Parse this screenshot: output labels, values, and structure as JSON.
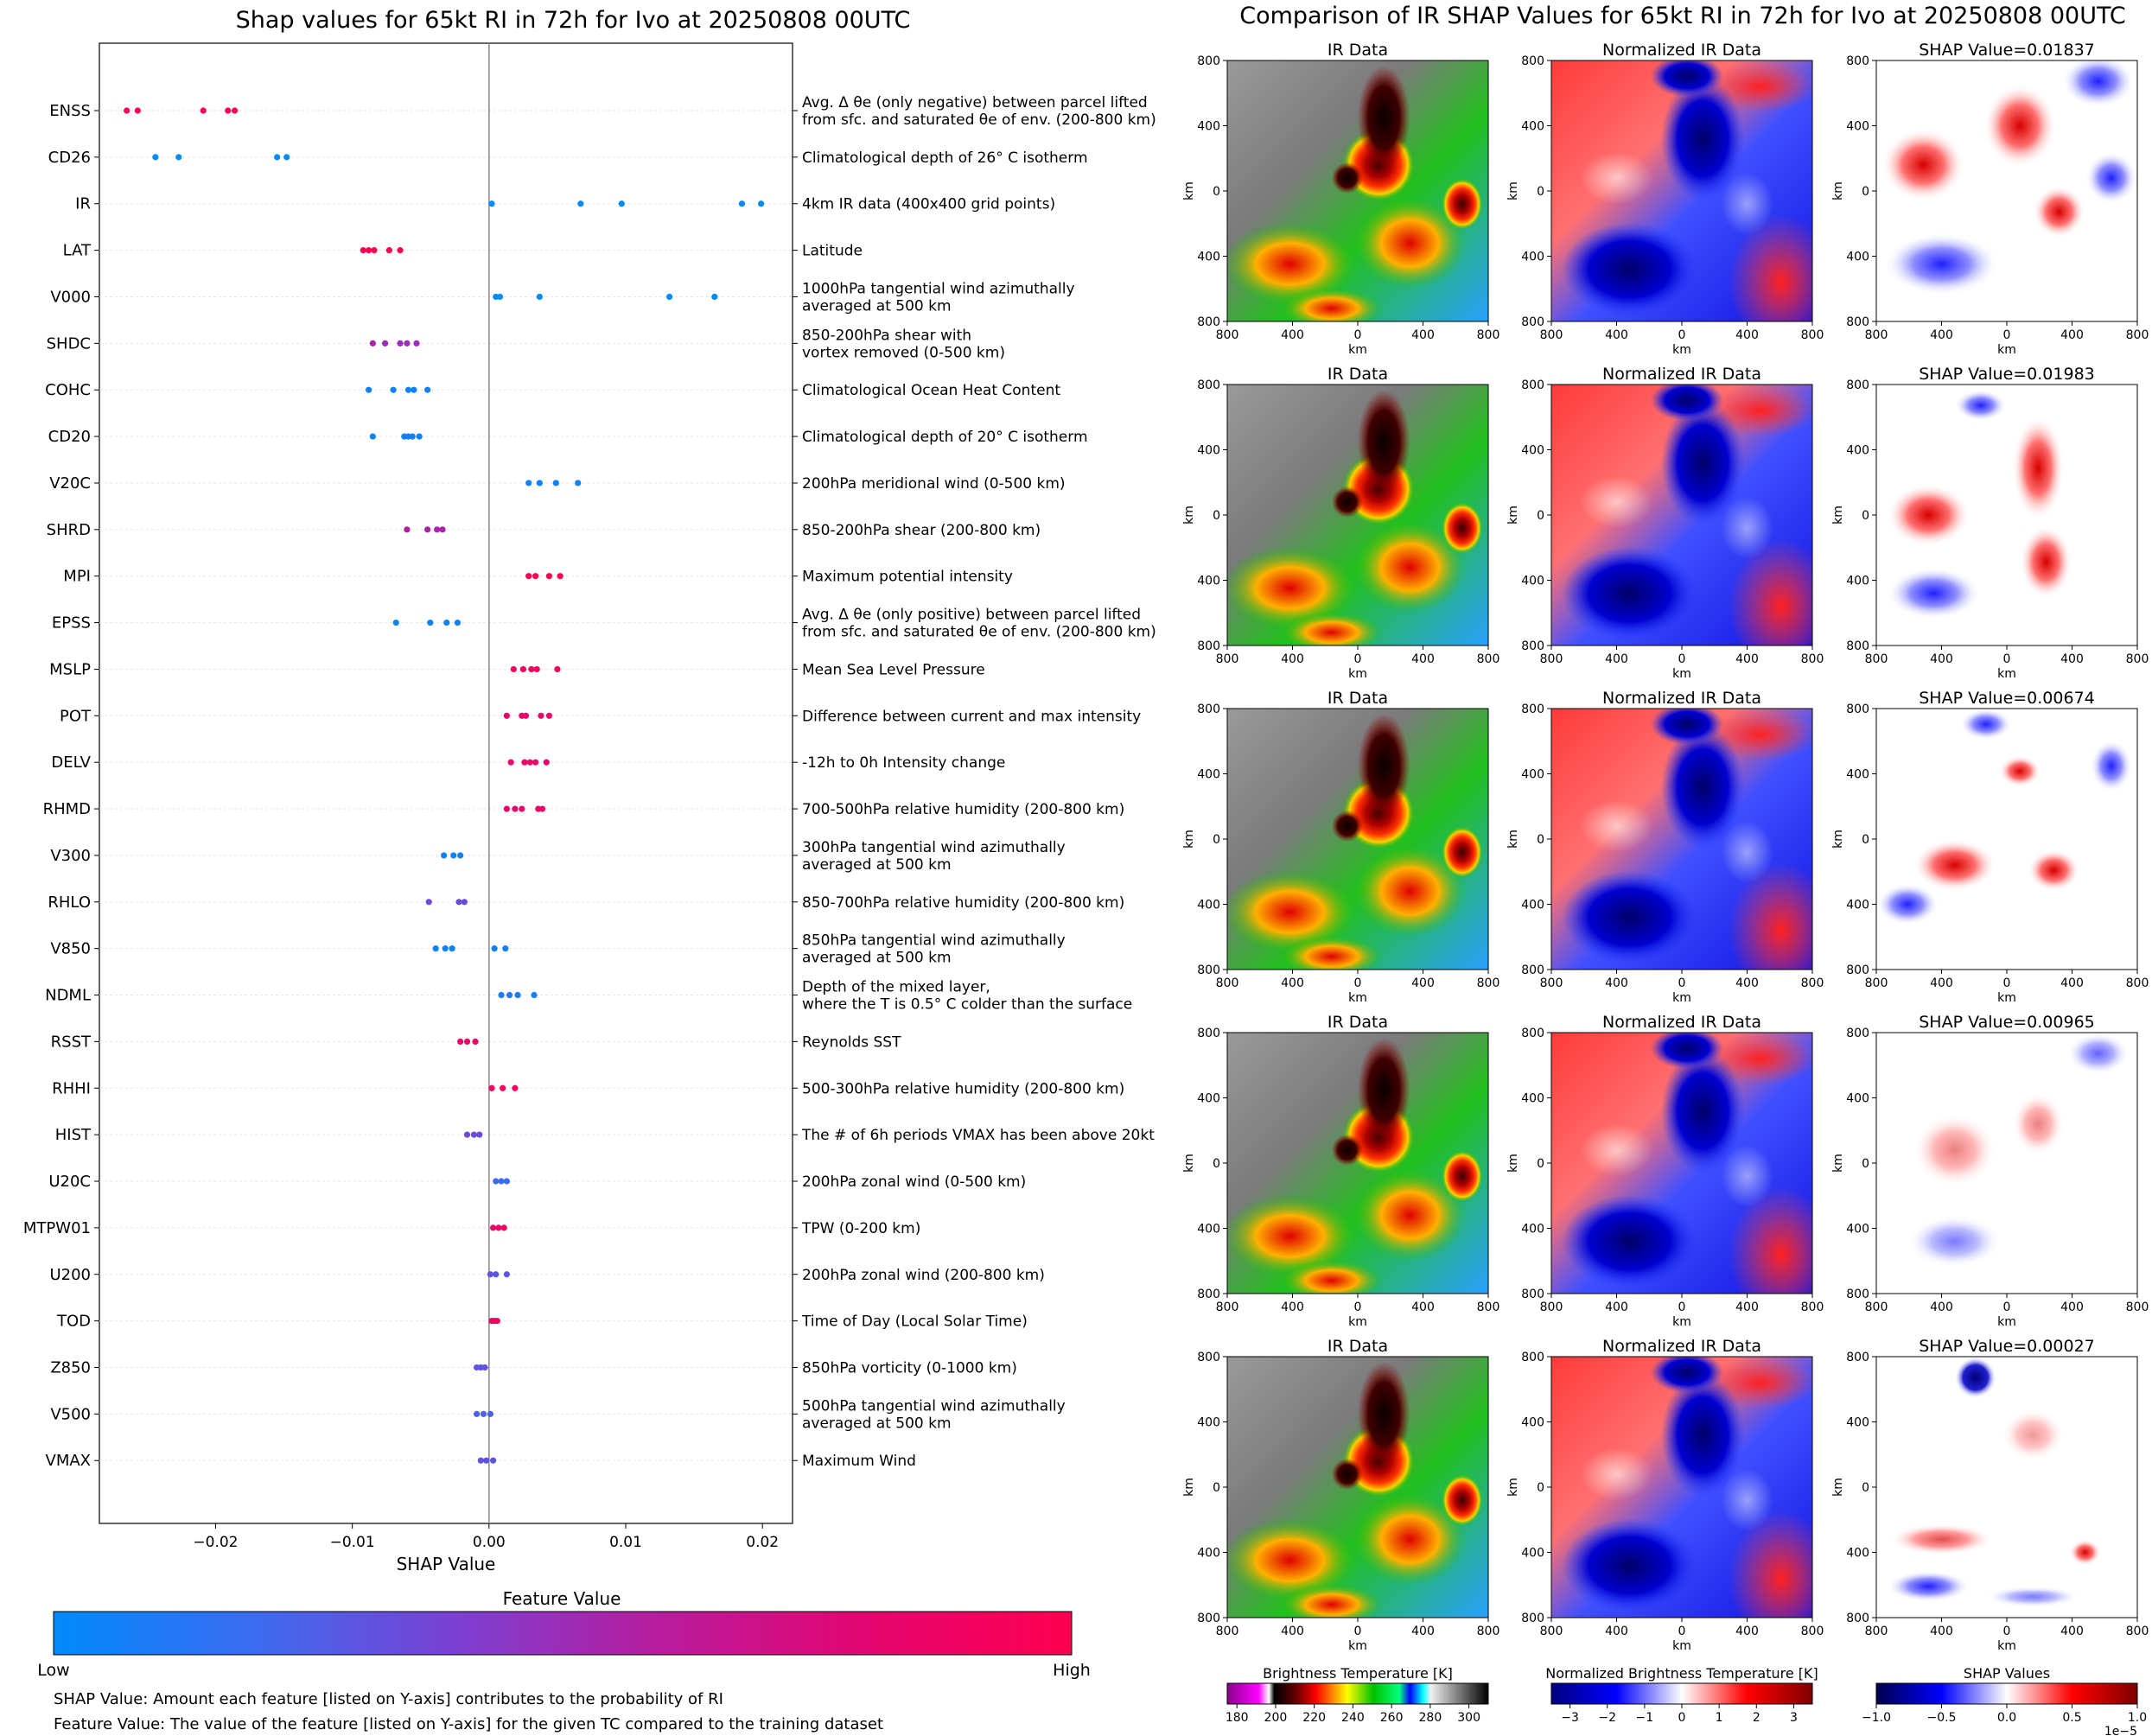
{
  "chart_data": {
    "left": {
      "type": "scatter",
      "title": "Shap values for 65kt RI in 72h for Ivo at 20250808 00UTC",
      "xlabel": "SHAP Value",
      "xlim": [
        -0.0285,
        0.0222
      ],
      "xticks": [
        -0.02,
        -0.01,
        0.0,
        0.01,
        0.02
      ],
      "xtick_labels": [
        "−0.02",
        "−0.01",
        "0.00",
        "0.01",
        "0.02"
      ],
      "features": [
        {
          "code": "ENSS",
          "desc": [
            "Avg. Δ θe (only negative) between parcel lifted",
            "from sfc. and saturated θe of env. (200-800 km)"
          ],
          "points": [
            [
              -0.0265,
              1.0
            ],
            [
              -0.0257,
              1.0
            ],
            [
              -0.0209,
              1.0
            ],
            [
              -0.0191,
              1.0
            ],
            [
              -0.0186,
              1.0
            ]
          ]
        },
        {
          "code": "CD26",
          "desc": [
            "Climatological depth of 26° C isotherm"
          ],
          "points": [
            [
              -0.0244,
              0.0
            ],
            [
              -0.0227,
              0.0
            ],
            [
              -0.0155,
              0.0
            ],
            [
              -0.0148,
              0.0
            ]
          ]
        },
        {
          "code": "IR",
          "desc": [
            "4km IR data (400x400 grid points)"
          ],
          "points": [
            [
              0.0002,
              0.0
            ],
            [
              0.0067,
              0.0
            ],
            [
              0.0097,
              0.0
            ],
            [
              0.0185,
              0.0
            ],
            [
              0.0199,
              0.0
            ]
          ]
        },
        {
          "code": "LAT",
          "desc": [
            "Latitude"
          ],
          "points": [
            [
              -0.0092,
              1.0
            ],
            [
              -0.0088,
              1.0
            ],
            [
              -0.0084,
              1.0
            ],
            [
              -0.0073,
              1.0
            ],
            [
              -0.0065,
              1.0
            ]
          ]
        },
        {
          "code": "V000",
          "desc": [
            "1000hPa tangential wind azimuthally",
            "averaged at 500 km"
          ],
          "points": [
            [
              0.0005,
              0.0
            ],
            [
              0.0008,
              0.0
            ],
            [
              0.0037,
              0.0
            ],
            [
              0.0132,
              0.0
            ],
            [
              0.0165,
              0.0
            ]
          ]
        },
        {
          "code": "SHDC",
          "desc": [
            "850-200hPa shear with",
            "vortex removed (0-500 km)"
          ],
          "points": [
            [
              -0.0085,
              0.55
            ],
            [
              -0.0076,
              0.5
            ],
            [
              -0.0065,
              0.5
            ],
            [
              -0.006,
              0.5
            ],
            [
              -0.0053,
              0.5
            ]
          ]
        },
        {
          "code": "COHC",
          "desc": [
            "Climatological Ocean Heat Content"
          ],
          "points": [
            [
              -0.0088,
              0.05
            ],
            [
              -0.007,
              0.05
            ],
            [
              -0.0059,
              0.05
            ],
            [
              -0.0055,
              0.05
            ],
            [
              -0.0045,
              0.05
            ]
          ]
        },
        {
          "code": "CD20",
          "desc": [
            "Climatological depth of 20° C isotherm"
          ],
          "points": [
            [
              -0.0085,
              0.05
            ],
            [
              -0.0062,
              0.05
            ],
            [
              -0.0059,
              0.05
            ],
            [
              -0.0056,
              0.05
            ],
            [
              -0.0051,
              0.05
            ]
          ]
        },
        {
          "code": "V20C",
          "desc": [
            "200hPa meridional wind (0-500 km)"
          ],
          "points": [
            [
              0.0029,
              0.05
            ],
            [
              0.0037,
              0.05
            ],
            [
              0.0049,
              0.05
            ],
            [
              0.0065,
              0.05
            ]
          ]
        },
        {
          "code": "SHRD",
          "desc": [
            "850-200hPa shear (200-800 km)"
          ],
          "points": [
            [
              -0.006,
              0.6
            ],
            [
              -0.0045,
              0.55
            ],
            [
              -0.0038,
              0.55
            ],
            [
              -0.0034,
              0.55
            ]
          ]
        },
        {
          "code": "MPI",
          "desc": [
            "Maximum potential intensity"
          ],
          "points": [
            [
              0.0029,
              1.0
            ],
            [
              0.0034,
              1.0
            ],
            [
              0.0044,
              1.0
            ],
            [
              0.0052,
              1.0
            ]
          ]
        },
        {
          "code": "EPSS",
          "desc": [
            "Avg. Δ θe (only positive) between parcel lifted",
            "from sfc. and saturated θe of env. (200-800 km)"
          ],
          "points": [
            [
              -0.0068,
              0.05
            ],
            [
              -0.0043,
              0.05
            ],
            [
              -0.0031,
              0.05
            ],
            [
              -0.0023,
              0.05
            ]
          ]
        },
        {
          "code": "MSLP",
          "desc": [
            "Mean Sea Level Pressure"
          ],
          "points": [
            [
              0.0018,
              0.9
            ],
            [
              0.0025,
              0.9
            ],
            [
              0.0031,
              0.9
            ],
            [
              0.0035,
              0.9
            ],
            [
              0.005,
              0.9
            ]
          ]
        },
        {
          "code": "POT",
          "desc": [
            "Difference between current and max intensity"
          ],
          "points": [
            [
              0.0013,
              0.85
            ],
            [
              0.0024,
              0.85
            ],
            [
              0.0027,
              0.85
            ],
            [
              0.0038,
              0.85
            ],
            [
              0.0044,
              0.85
            ]
          ]
        },
        {
          "code": "DELV",
          "desc": [
            "-12h to 0h Intensity change"
          ],
          "points": [
            [
              0.0016,
              0.85
            ],
            [
              0.0026,
              0.85
            ],
            [
              0.003,
              0.85
            ],
            [
              0.0034,
              0.85
            ],
            [
              0.0042,
              0.85
            ]
          ]
        },
        {
          "code": "RHMD",
          "desc": [
            "700-500hPa relative humidity (200-800 km)"
          ],
          "points": [
            [
              0.0013,
              0.85
            ],
            [
              0.0019,
              0.85
            ],
            [
              0.0024,
              0.85
            ],
            [
              0.0036,
              0.85
            ],
            [
              0.0039,
              0.85
            ]
          ]
        },
        {
          "code": "V300",
          "desc": [
            "300hPa tangential wind azimuthally",
            "averaged at 500 km"
          ],
          "points": [
            [
              -0.0033,
              0.05
            ],
            [
              -0.0026,
              0.05
            ],
            [
              -0.0021,
              0.05
            ]
          ]
        },
        {
          "code": "RHLO",
          "desc": [
            "850-700hPa relative humidity (200-800 km)"
          ],
          "points": [
            [
              -0.0044,
              0.35
            ],
            [
              -0.0022,
              0.35
            ],
            [
              -0.0018,
              0.35
            ]
          ]
        },
        {
          "code": "V850",
          "desc": [
            "850hPa tangential wind azimuthally",
            "averaged at 500 km"
          ],
          "points": [
            [
              -0.0039,
              0.05
            ],
            [
              -0.0032,
              0.05
            ],
            [
              -0.0027,
              0.05
            ],
            [
              0.0004,
              0.05
            ],
            [
              0.0012,
              0.05
            ]
          ]
        },
        {
          "code": "NDML",
          "desc": [
            "Depth of the mixed layer,",
            "where the T is 0.5° C colder than the surface"
          ],
          "points": [
            [
              0.0009,
              0.1
            ],
            [
              0.0015,
              0.1
            ],
            [
              0.0021,
              0.1
            ],
            [
              0.0033,
              0.1
            ]
          ]
        },
        {
          "code": "RSST",
          "desc": [
            "Reynolds SST"
          ],
          "points": [
            [
              -0.0021,
              0.85
            ],
            [
              -0.0016,
              0.85
            ],
            [
              -0.001,
              0.85
            ]
          ]
        },
        {
          "code": "RHHI",
          "desc": [
            "500-300hPa relative humidity (200-800 km)"
          ],
          "points": [
            [
              0.0002,
              0.9
            ],
            [
              0.001,
              0.9
            ],
            [
              0.0019,
              0.9
            ]
          ]
        },
        {
          "code": "HIST",
          "desc": [
            "The # of 6h periods VMAX has been above 20kt"
          ],
          "points": [
            [
              -0.0016,
              0.35
            ],
            [
              -0.0011,
              0.35
            ],
            [
              -0.0007,
              0.35
            ]
          ]
        },
        {
          "code": "U20C",
          "desc": [
            "200hPa zonal wind (0-500 km)"
          ],
          "points": [
            [
              0.0005,
              0.2
            ],
            [
              0.0009,
              0.2
            ],
            [
              0.0013,
              0.2
            ]
          ]
        },
        {
          "code": "MTPW01",
          "desc": [
            "TPW (0-200 km)"
          ],
          "points": [
            [
              0.0003,
              0.85
            ],
            [
              0.0007,
              0.85
            ],
            [
              0.0011,
              0.85
            ]
          ]
        },
        {
          "code": "U200",
          "desc": [
            "200hPa zonal wind (200-800 km)"
          ],
          "points": [
            [
              0.0001,
              0.3
            ],
            [
              0.0005,
              0.3
            ],
            [
              0.0013,
              0.3
            ]
          ]
        },
        {
          "code": "TOD",
          "desc": [
            "Time of Day (Local Solar Time)"
          ],
          "points": [
            [
              0.0002,
              0.9
            ],
            [
              0.0004,
              0.9
            ],
            [
              0.0006,
              0.9
            ]
          ]
        },
        {
          "code": "Z850",
          "desc": [
            "850hPa vorticity (0-1000 km)"
          ],
          "points": [
            [
              -0.0009,
              0.3
            ],
            [
              -0.0006,
              0.3
            ],
            [
              -0.0003,
              0.3
            ]
          ]
        },
        {
          "code": "V500",
          "desc": [
            "500hPa tangential wind azimuthally",
            "averaged at 500 km"
          ],
          "points": [
            [
              -0.0009,
              0.25
            ],
            [
              -0.0004,
              0.25
            ],
            [
              0.0001,
              0.25
            ]
          ]
        },
        {
          "code": "VMAX",
          "desc": [
            "Maximum Wind"
          ],
          "points": [
            [
              -0.0006,
              0.3
            ],
            [
              -0.0002,
              0.3
            ],
            [
              0.0003,
              0.3
            ]
          ]
        }
      ],
      "colorbar": {
        "title": "Feature Value",
        "low": "Low",
        "high": "High",
        "colors": [
          "#008afb",
          "#3c6bf0",
          "#7d3fd1",
          "#b91b9c",
          "#e40670",
          "#ff0051"
        ]
      },
      "notes": [
        "SHAP Value: Amount each feature [listed on Y-axis] contributes to the probability of RI",
        "Feature Value: The value of the feature [listed on Y-axis] for the given TC compared to the training dataset"
      ]
    },
    "right": {
      "type": "heatmap",
      "title": "Comparison of IR SHAP Values for 65kt RI in 72h for Ivo at 20250808 00UTC",
      "panel_titles": [
        "IR Data",
        "Normalized IR Data"
      ],
      "shap_titles": [
        "SHAP Value=0.01837",
        "SHAP Value=0.01983",
        "SHAP Value=0.00674",
        "SHAP Value=0.00965",
        "SHAP Value=0.00027"
      ],
      "axis_ticks": [
        "800",
        "400",
        "0",
        "400",
        "800"
      ],
      "xlabel": "km",
      "ylabel": "km",
      "colorbars": [
        {
          "label": "Brightness Temperature [K]",
          "ticks": [
            "180",
            "200",
            "220",
            "240",
            "260",
            "280",
            "300"
          ],
          "range": [
            175,
            310
          ]
        },
        {
          "label": "Normalized Brightness Temperature [K]",
          "ticks": [
            "−3",
            "−2",
            "−1",
            "0",
            "1",
            "2",
            "3"
          ],
          "range": [
            -3.5,
            3.5
          ]
        },
        {
          "label": "SHAP Values",
          "ticks": [
            "−1.0",
            "−0.5",
            "0.0",
            "0.5",
            "1.0"
          ],
          "range": [
            -1.0,
            1.0
          ],
          "exponent": "1e−5"
        }
      ]
    }
  }
}
